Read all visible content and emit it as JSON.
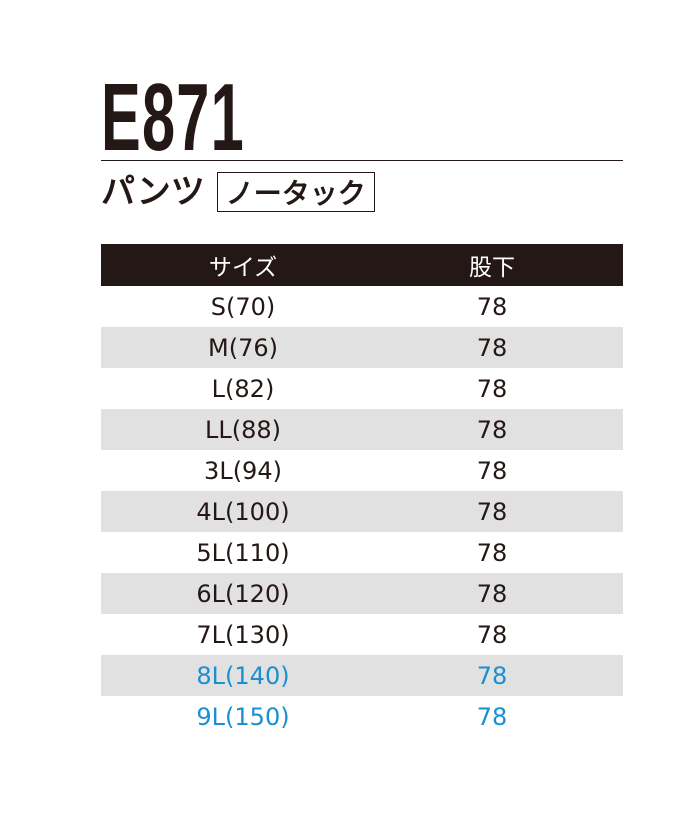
{
  "header": {
    "model": "E871",
    "product_type": "パンツ",
    "tag": "ノータック"
  },
  "table": {
    "columns": [
      "サイズ",
      "股下"
    ],
    "rows": [
      {
        "size": "S(70)",
        "inseam": "78"
      },
      {
        "size": "M(76)",
        "inseam": "78"
      },
      {
        "size": "L(82)",
        "inseam": "78"
      },
      {
        "size": "LL(88)",
        "inseam": "78"
      },
      {
        "size": "3L(94)",
        "inseam": "78"
      },
      {
        "size": "4L(100)",
        "inseam": "78"
      },
      {
        "size": "5L(110)",
        "inseam": "78"
      },
      {
        "size": "6L(120)",
        "inseam": "78"
      },
      {
        "size": "7L(130)",
        "inseam": "78"
      },
      {
        "size": "8L(140)",
        "inseam": "78"
      },
      {
        "size": "9L(150)",
        "inseam": "78"
      }
    ],
    "highlight_color": "#1a8fd1",
    "header_bg": "#231815",
    "alt_row_bg": "#e1e1e1"
  }
}
